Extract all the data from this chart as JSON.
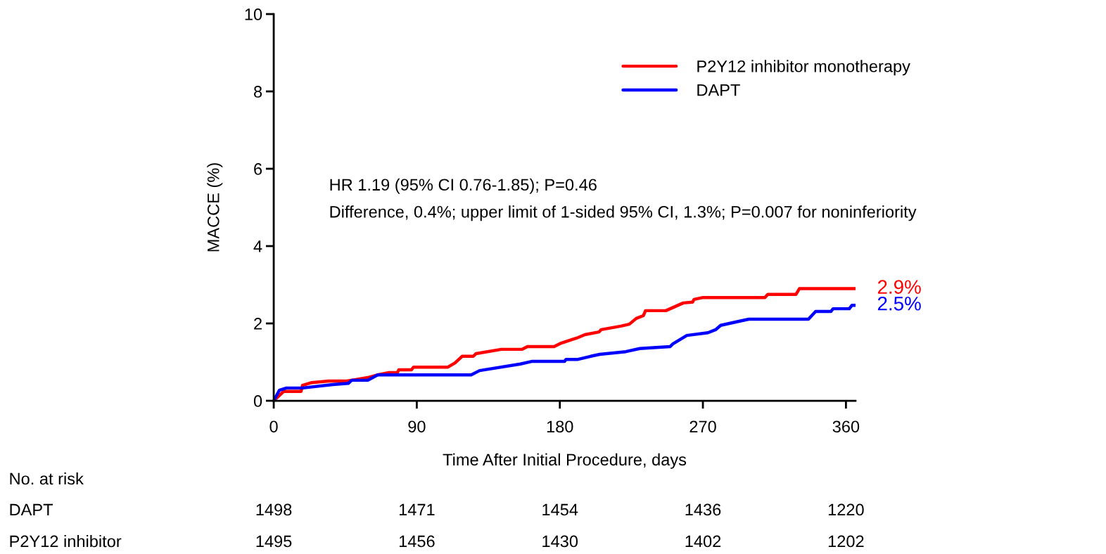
{
  "chart_data": {
    "type": "line",
    "xlabel": "Time After Initial Procedure, days",
    "ylabel": "MACCE (%)",
    "xlim": [
      0,
      366
    ],
    "xticks": [
      0,
      90,
      180,
      270,
      360
    ],
    "ylim": [
      0,
      10
    ],
    "yticks": [
      0,
      2,
      4,
      6,
      8,
      10
    ],
    "grid": false,
    "legend": "top right",
    "marker": "none",
    "line_style": "solid",
    "series": [
      {
        "name": "P2Y12 inhibitor monotherapy",
        "color": "#ff0000",
        "x": [
          0,
          6.2,
          17.2,
          18.1,
          23.9,
          34.5,
          46.0,
          59.2,
          65.4,
          72.5,
          77.8,
          78.7,
          86.6,
          88.0,
          109.6,
          114.1,
          118.5,
          125.6,
          127.3,
          143.2,
          156.1,
          159.6,
          176.4,
          180.8,
          187.4,
          190.5,
          195.8,
          204.7,
          206.0,
          218.4,
          223.7,
          228.1,
          232.5,
          233.9,
          246.7,
          257.7,
          263.5,
          264.4,
          270.1,
          309.0,
          310.8,
          328.5,
          330.7,
          366
        ],
        "values": [
          0,
          0.24,
          0.24,
          0.4,
          0.47,
          0.51,
          0.51,
          0.6,
          0.67,
          0.73,
          0.73,
          0.8,
          0.8,
          0.87,
          0.87,
          0.98,
          1.15,
          1.15,
          1.22,
          1.33,
          1.33,
          1.4,
          1.4,
          1.49,
          1.58,
          1.62,
          1.71,
          1.78,
          1.84,
          1.93,
          1.98,
          2.13,
          2.2,
          2.33,
          2.33,
          2.53,
          2.55,
          2.62,
          2.67,
          2.67,
          2.75,
          2.75,
          2.9,
          2.9
        ]
      },
      {
        "name": "DAPT",
        "color": "#0000ff",
        "x": [
          0,
          3.5,
          8.0,
          18.1,
          37.1,
          46.9,
          49.1,
          59.2,
          65.4,
          124.2,
          129.5,
          155.2,
          162.7,
          183.0,
          183.9,
          191.4,
          199.4,
          205.1,
          221.5,
          230.3,
          249.3,
          251.1,
          259.9,
          273.2,
          278.1,
          281.2,
          292.2,
          298.9,
          336.4,
          340.9,
          350.6,
          351.9,
          362.1,
          363.8,
          366
        ],
        "values": [
          0,
          0.27,
          0.33,
          0.33,
          0.42,
          0.45,
          0.53,
          0.53,
          0.67,
          0.67,
          0.78,
          0.95,
          1.02,
          1.02,
          1.07,
          1.07,
          1.15,
          1.2,
          1.27,
          1.35,
          1.4,
          1.47,
          1.69,
          1.76,
          1.84,
          1.95,
          2.05,
          2.11,
          2.11,
          2.31,
          2.31,
          2.38,
          2.38,
          2.47,
          2.47
        ]
      }
    ],
    "annotations": [
      "HR 1.19 (95% CI 0.76-1.85); P=0.46",
      "Difference, 0.4%; upper limit of 1-sided 95% CI, 1.3%; P=0.007 for noninferiority",
      {
        "text": "2.9%",
        "x": 366,
        "y": 2.9
      },
      {
        "text": "2.5%",
        "x": 366,
        "y": 2.47
      },
      "No. at risk",
      "DAPT",
      "1498",
      "1471",
      "1454",
      "1436",
      "1220",
      "P2Y12 inhibitor",
      "1495",
      "1456",
      "1430",
      "1402",
      "1202"
    ]
  }
}
